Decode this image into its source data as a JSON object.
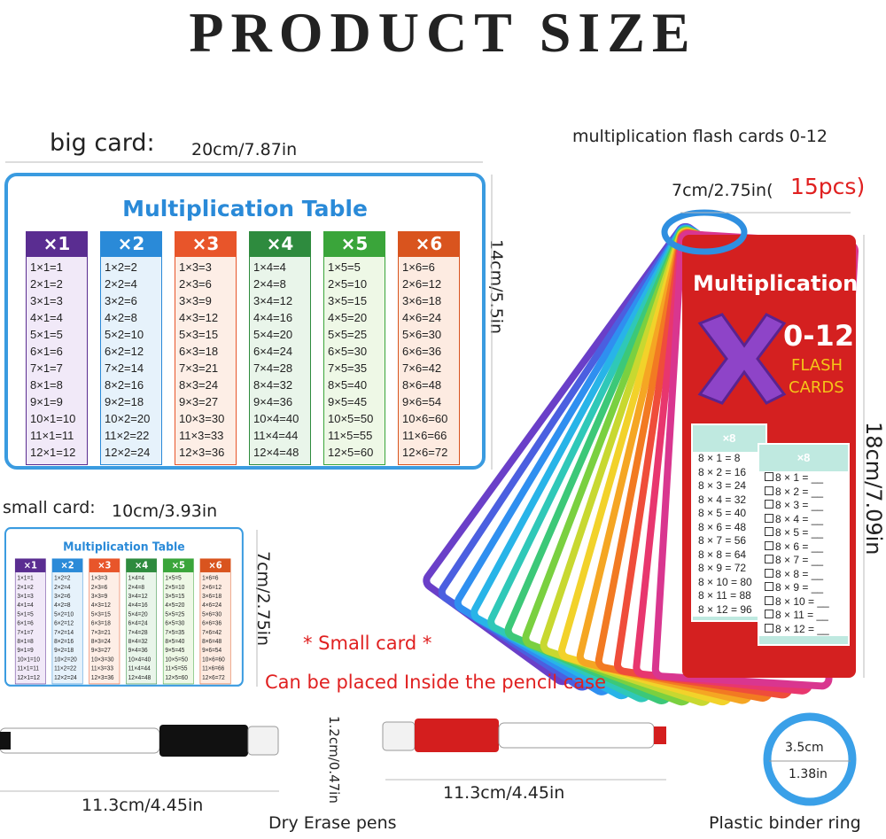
{
  "title": "PRODUCT SIZE",
  "big_card": {
    "label": "big card:",
    "width": "20cm/7.87in",
    "height": "14cm/5.5in"
  },
  "small_card": {
    "label": "small card:",
    "width": "10cm/3.93in",
    "height": "7cm/2.75in"
  },
  "multiplication_table": {
    "title": "Multiplication Table",
    "columns": [
      {
        "header": "×1",
        "rows": [
          "1×1=1",
          "2×1=2",
          "3×1=3",
          "4×1=4",
          "5×1=5",
          "6×1=6",
          "7×1=7",
          "8×1=8",
          "9×1=9",
          "10×1=10",
          "11×1=11",
          "12×1=12"
        ]
      },
      {
        "header": "×2",
        "rows": [
          "1×2=2",
          "2×2=4",
          "3×2=6",
          "4×2=8",
          "5×2=10",
          "6×2=12",
          "7×2=14",
          "8×2=16",
          "9×2=18",
          "10×2=20",
          "11×2=22",
          "12×2=24"
        ]
      },
      {
        "header": "×3",
        "rows": [
          "1×3=3",
          "2×3=6",
          "3×3=9",
          "4×3=12",
          "5×3=15",
          "6×3=18",
          "7×3=21",
          "8×3=24",
          "9×3=27",
          "10×3=30",
          "11×3=33",
          "12×3=36"
        ]
      },
      {
        "header": "×4",
        "rows": [
          "1×4=4",
          "2×4=8",
          "3×4=12",
          "4×4=16",
          "5×4=20",
          "6×4=24",
          "7×4=28",
          "8×4=32",
          "9×4=36",
          "10×4=40",
          "11×4=44",
          "12×4=48"
        ]
      },
      {
        "header": "×5",
        "rows": [
          "1×5=5",
          "2×5=10",
          "3×5=15",
          "4×5=20",
          "5×5=25",
          "6×5=30",
          "7×5=35",
          "8×5=40",
          "9×5=45",
          "10×5=50",
          "11×5=55",
          "12×5=60"
        ]
      },
      {
        "header": "×6",
        "rows": [
          "1×6=6",
          "2×6=12",
          "3×6=18",
          "4×6=24",
          "5×6=30",
          "6×6=36",
          "7×6=42",
          "8×6=48",
          "9×6=54",
          "10×6=60",
          "11×6=66",
          "12×6=72"
        ]
      }
    ]
  },
  "flash_cards": {
    "caption": "multiplication flash cards 0-12",
    "width": "7cm/2.75in(",
    "count": "15pcs)",
    "height": "18cm/7.09in",
    "title": "Multiplication",
    "range": "0-12",
    "subtitle_1": "FLASH",
    "subtitle_2": "CARDS",
    "answer_card": {
      "badge": "×8",
      "rows": [
        "8 × 1 = 8",
        "8 × 2 = 16",
        "8 × 3 = 24",
        "8 × 4 = 32",
        "8 × 5 = 40",
        "8 × 6 = 48",
        "8 × 7 = 56",
        "8 × 8 = 64",
        "8 × 9 = 72",
        "8 × 10 = 80",
        "8 × 11 = 88",
        "8 × 12 = 96"
      ]
    },
    "practice_card": {
      "badge": "×8",
      "rows": [
        "8 × 1 = __",
        "8 × 2 = __",
        "8 × 3 = __",
        "8 × 4 = __",
        "8 × 5 = __",
        "8 × 6 = __",
        "8 × 7 = __",
        "8 × 8 = __",
        "8 × 9 = __",
        "8 × 10 = __",
        "8 × 11 = __",
        "8 × 12 = __"
      ]
    }
  },
  "note": {
    "line_1": "* Small card *",
    "line_2": "Can be placed Inside the pencil case"
  },
  "pens": {
    "length_left": "11.3cm/4.45in",
    "diameter": "1.2cm/0.47in",
    "length_right": "11.3cm/4.45in",
    "label": "Dry Erase pens"
  },
  "ring": {
    "diameter_cm": "3.5cm",
    "diameter_in": "1.38in",
    "label": "Plastic binder ring"
  }
}
